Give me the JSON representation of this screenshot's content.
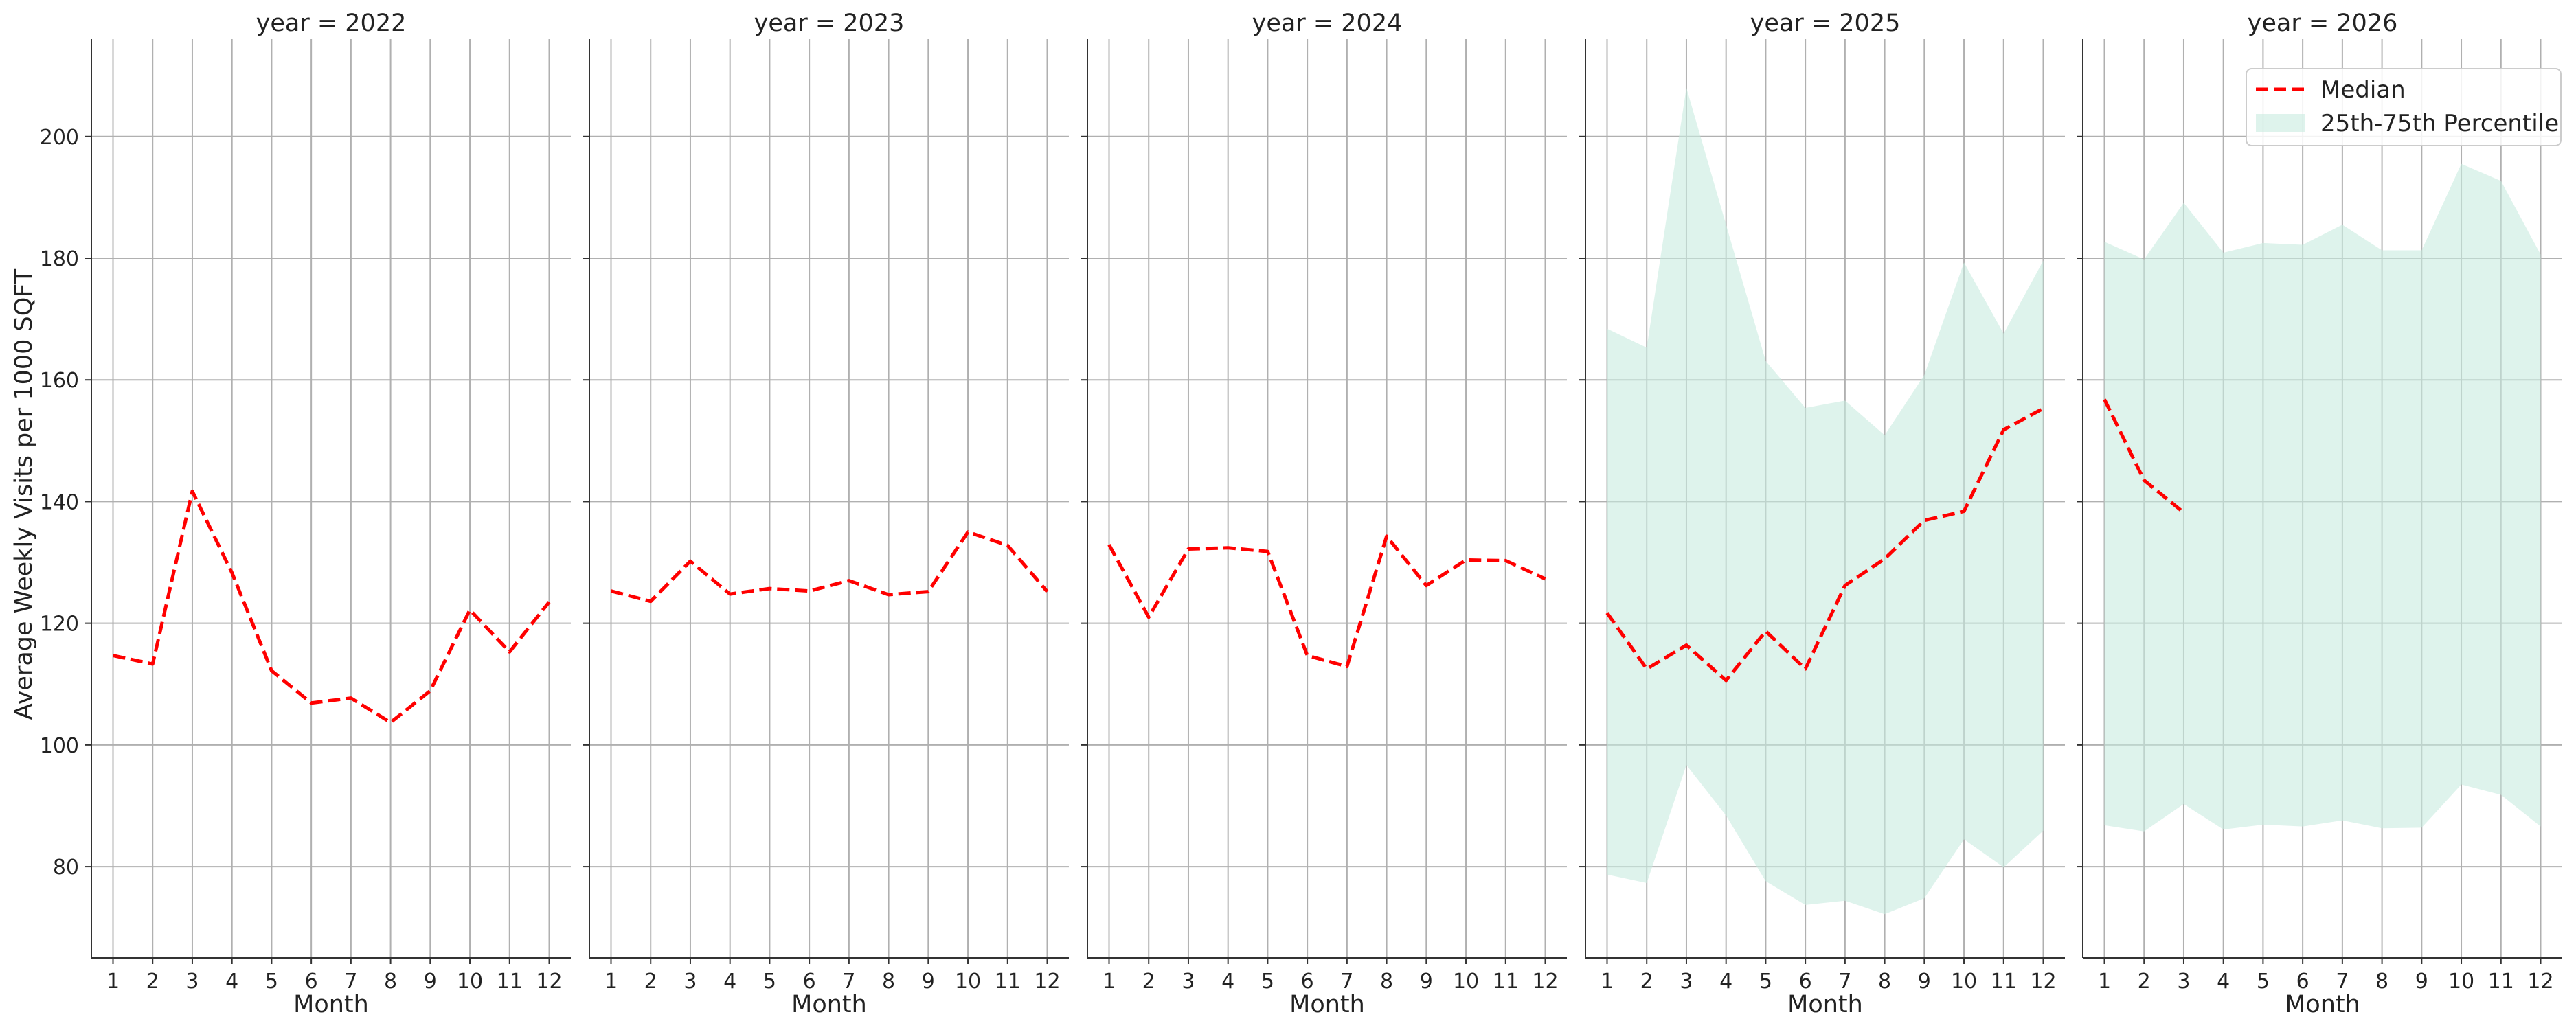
{
  "chart_data": {
    "type": "line",
    "ylabel": "Average Weekly Visits per 1000 SQFT",
    "xlabel": "Month",
    "ylim": [
      65,
      216
    ],
    "yticks": [
      80,
      100,
      120,
      140,
      160,
      180,
      200
    ],
    "xticks": [
      1,
      2,
      3,
      4,
      5,
      6,
      7,
      8,
      9,
      10,
      11,
      12
    ],
    "grid": true,
    "legend_position": "top-right",
    "legend": {
      "median": "Median",
      "band": "25th-75th Percentile"
    },
    "colors": {
      "median": "#ff0000",
      "band": "#c8ebe0",
      "grid": "#b0b0b0",
      "axis": "#333333"
    },
    "facets": [
      {
        "title": "year = 2022",
        "median": {
          "x": [
            1,
            2,
            3,
            4,
            5,
            6,
            7,
            8,
            9,
            10,
            11,
            12
          ],
          "y": [
            114.7,
            113.3,
            141.7,
            128.3,
            112.2,
            106.9,
            107.7,
            103.7,
            108.9,
            122.2,
            115.3,
            123.5
          ]
        },
        "band": null
      },
      {
        "title": "year = 2023",
        "median": {
          "x": [
            1,
            2,
            3,
            4,
            5,
            6,
            7,
            8,
            9,
            10,
            11,
            12
          ],
          "y": [
            125.3,
            123.6,
            130.2,
            124.8,
            125.7,
            125.3,
            127.0,
            124.7,
            125.2,
            135.0,
            132.8,
            125.2
          ]
        },
        "band": null
      },
      {
        "title": "year = 2024",
        "median": {
          "x": [
            1,
            2,
            3,
            4,
            5,
            6,
            7,
            8,
            9,
            10,
            11,
            12
          ],
          "y": [
            132.9,
            121.0,
            132.2,
            132.4,
            131.8,
            114.7,
            112.9,
            134.3,
            126.2,
            130.4,
            130.3,
            127.3
          ]
        },
        "band": null
      },
      {
        "title": "year = 2025",
        "median": {
          "x": [
            1,
            2,
            3,
            4,
            5,
            6,
            7,
            8,
            9,
            10,
            11,
            12
          ],
          "y": [
            121.7,
            112.5,
            116.4,
            110.6,
            118.7,
            112.5,
            126.2,
            130.6,
            136.9,
            138.4,
            151.8,
            155.3
          ]
        },
        "band": {
          "x": [
            1,
            2,
            3,
            4,
            5,
            6,
            7,
            8,
            9,
            10,
            11,
            12
          ],
          "lower": [
            78.7,
            77.3,
            96.7,
            88.4,
            77.6,
            73.7,
            74.4,
            72.2,
            74.8,
            84.5,
            79.9,
            85.9
          ],
          "upper": [
            168.4,
            165.3,
            208.0,
            185.5,
            163.1,
            155.4,
            156.6,
            150.9,
            160.8,
            179.3,
            167.6,
            179.6
          ]
        }
      },
      {
        "title": "year = 2026",
        "median": {
          "x": [
            1,
            2,
            3
          ],
          "y": [
            156.8,
            143.5,
            138.2
          ]
        },
        "band": {
          "x": [
            1,
            2,
            3,
            4,
            5,
            6,
            7,
            8,
            9,
            10,
            11,
            12
          ],
          "lower": [
            86.8,
            85.8,
            90.3,
            86.1,
            86.9,
            86.6,
            87.6,
            86.3,
            86.4,
            93.5,
            91.8,
            86.6
          ],
          "upper": [
            182.7,
            179.8,
            189.1,
            180.9,
            182.5,
            182.2,
            185.5,
            181.3,
            181.3,
            195.5,
            192.7,
            180.6
          ]
        }
      }
    ]
  }
}
